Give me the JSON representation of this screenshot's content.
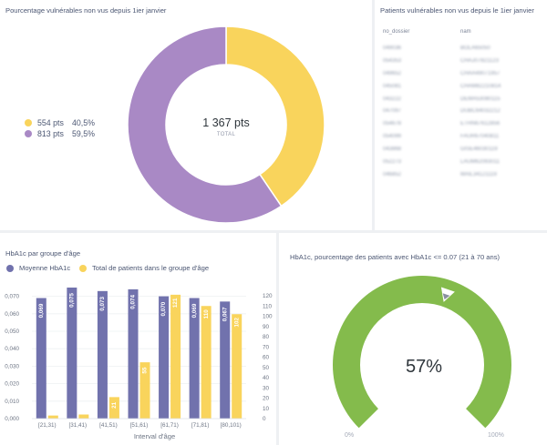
{
  "donut_card": {
    "title": "Pourcentage vulnérables non vus depuis 1ier janvier",
    "legend": [
      {
        "pts": "554 pts",
        "pct": "40,5%",
        "color": "#F9D45C"
      },
      {
        "pts": "813 pts",
        "pct": "59,5%",
        "color": "#A989C5"
      }
    ],
    "total_value": "1 367 pts",
    "total_label": "TOTAL"
  },
  "table_card": {
    "title": "Patients vulnérables non vus depuis le 1ier janvier",
    "columns": [
      "no_dossier",
      "nam"
    ],
    "rows": [
      [
        "049036",
        "BOLA65050"
      ],
      [
        "054353",
        "CHAJ07821123"
      ],
      [
        "049652",
        "CHAA49071957"
      ],
      [
        "045081",
        "CHAM82210814"
      ],
      [
        "043222",
        "DEMA53080115"
      ],
      [
        "047097",
        "DUBC64032212"
      ],
      [
        "054678",
        "ETHN67612856"
      ],
      [
        "054099",
        "FAUR67040811"
      ],
      [
        "043868",
        "GISE46030119"
      ],
      [
        "052273",
        "LAUM62093011"
      ],
      [
        "046852",
        "MAIL34121119"
      ]
    ]
  },
  "bar_card": {
    "title": "HbA1c par groupe d'âge",
    "legend": [
      {
        "label": "Moyenne HbA1c",
        "color": "#7172AD"
      },
      {
        "label": "Total de patients dans le groupe d'âge",
        "color": "#F9D45C"
      }
    ],
    "xlabel": "Interval d'âge"
  },
  "gauge_card": {
    "title": "HbA1c, pourcentage des patients avec HbA1c <= 0.07 (21 à 70 ans)",
    "value_label": "57%",
    "min_label": "0%",
    "max_label": "100%",
    "value": 0.57,
    "color": "#84BB4C"
  },
  "chart_data": [
    {
      "type": "pie",
      "categories": [
        "554 pts",
        "813 pts"
      ],
      "values": [
        554,
        813
      ],
      "colors": [
        "#F9D45C",
        "#A989C5"
      ],
      "total": 1367
    },
    {
      "type": "bar",
      "categories": [
        "[21,31)",
        "[31,41)",
        "[41,51)",
        "[51,61)",
        "[61,71)",
        "[71,81)",
        "[80,101)"
      ],
      "series": [
        {
          "name": "Moyenne HbA1c",
          "values": [
            0.069,
            0.075,
            0.073,
            0.074,
            0.07,
            0.069,
            0.067
          ],
          "labels": [
            "0,069",
            "0,075",
            "0,073",
            "0,074",
            "0,070",
            "0,069",
            "0,067"
          ],
          "color": "#7172AD",
          "axis": "left"
        },
        {
          "name": "Total de patients dans le groupe d'âge",
          "values": [
            3,
            4,
            21,
            55,
            121,
            110,
            102
          ],
          "labels": [
            "",
            "",
            "21",
            "55",
            "121",
            "110",
            "102"
          ],
          "color": "#F9D45C",
          "axis": "right"
        }
      ],
      "y_left_ticks": [
        "0,000",
        "0,010",
        "0,020",
        "0,030",
        "0,040",
        "0,050",
        "0,060",
        "0,070"
      ],
      "y_left_max": 0.075,
      "y_right_ticks": [
        "0",
        "10",
        "20",
        "30",
        "40",
        "50",
        "60",
        "70",
        "80",
        "90",
        "100",
        "110",
        "120"
      ],
      "y_right_max": 128,
      "xlabel": "Interval d'âge",
      "grid": true
    }
  ]
}
